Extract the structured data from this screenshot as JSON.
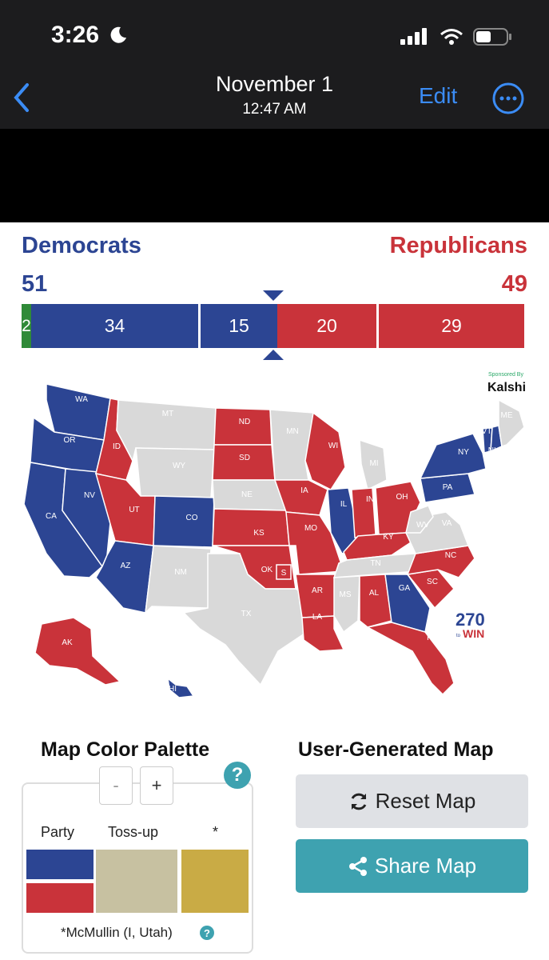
{
  "status_bar": {
    "time": "3:26"
  },
  "nav": {
    "title": "November 1",
    "subtitle": "12:47 AM",
    "edit_label": "Edit"
  },
  "header": {
    "dem_label": "Democrats",
    "rep_label": "Republicans",
    "dem_total": "51",
    "rep_total": "49"
  },
  "seat_bar": {
    "segments": [
      {
        "label": "2",
        "party": "independent",
        "value": 2
      },
      {
        "label": "34",
        "party": "dem-not-up",
        "value": 34
      },
      {
        "label": "15",
        "party": "dem-up",
        "value": 15
      },
      {
        "label": "20",
        "party": "rep-up",
        "value": 20
      },
      {
        "label": "29",
        "party": "rep-not-up",
        "value": 29
      }
    ]
  },
  "map": {
    "sponsor_label": "Sponsored By",
    "sponsor_name": "Kalshi",
    "logo_number": "270",
    "logo_text": "WIN",
    "states": {
      "WA": "D",
      "OR": "D",
      "CA": "D",
      "NV": "D",
      "AZ": "D",
      "CO": "D",
      "HI": "D",
      "ID": "R",
      "UT": "R",
      "ND": "R",
      "SD": "R",
      "KS": "R",
      "OK": "R",
      "IA": "R",
      "MO": "R",
      "AR": "R",
      "LA": "R",
      "WI": "R",
      "IL": "D",
      "IN": "R",
      "OH": "R",
      "KY": "R",
      "AL": "R",
      "GA": "D",
      "SC": "R",
      "NC": "R",
      "FL": "R",
      "AK": "R",
      "PA": "D",
      "NY": "D",
      "VT": "D",
      "NH": "D",
      "MT": "none",
      "WY": "none",
      "NM": "none",
      "TX": "none",
      "NE": "none",
      "MN": "none",
      "MI": "none",
      "TN": "none",
      "MS": "none",
      "WV": "none",
      "VA": "none",
      "ME": "none"
    },
    "special_label": "S"
  },
  "palette": {
    "title": "Map Color Palette",
    "minus_label": "-",
    "plus_label": "+",
    "help_label": "?",
    "col_party": "Party",
    "col_tossup": "Toss-up",
    "col_star": "*",
    "footnote": "*McMullin (I, Utah)",
    "colors": {
      "dem": "#2c4593",
      "rep": "#c9333a",
      "tossup": "#c7c1a1",
      "star": "#c9ab45"
    }
  },
  "user_map": {
    "title": "User-Generated Map",
    "reset_label": "Reset Map",
    "share_label": "Share Map"
  },
  "colors": {
    "dem": "#2c4593",
    "rep": "#c9333a",
    "independent": "#2f8a38",
    "none": "#d9d9d9",
    "accent": "#3b8cf5",
    "teal": "#3ea2b0"
  }
}
